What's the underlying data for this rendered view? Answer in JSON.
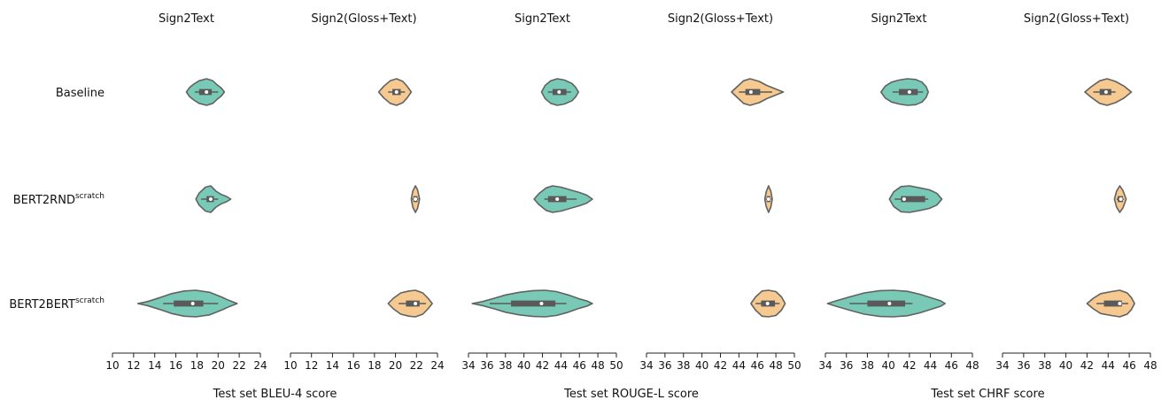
{
  "chart_data": {
    "type": "violin",
    "grid": false,
    "colors": {
      "Sign2Text": "#78c9b6",
      "Sign2(Gloss+Text)": "#f5c98f",
      "outline": "#626262",
      "box": "#5a5a5a",
      "median": "#ffffff"
    },
    "rows": [
      {
        "name": "Baseline",
        "sup": ""
      },
      {
        "name": "BERT2RND",
        "sup": "scratch"
      },
      {
        "name": "BERT2BERT",
        "sup": "scratch"
      }
    ],
    "metrics": [
      {
        "xlabel": "Test set BLEU-4 score",
        "ticks": [
          10,
          12,
          14,
          16,
          18,
          20,
          22,
          24
        ],
        "xlim": [
          10,
          24
        ]
      },
      {
        "xlabel": "Test set ROUGE-L score",
        "ticks": [
          34,
          36,
          38,
          40,
          42,
          44,
          46,
          48,
          50
        ],
        "xlim": [
          34,
          50
        ]
      },
      {
        "xlabel": "Test set CHRF score",
        "ticks": [
          34,
          36,
          38,
          40,
          42,
          44,
          46,
          48
        ],
        "xlim": [
          34,
          48
        ]
      }
    ],
    "panels": [
      {
        "title": "Sign2Text",
        "metric": 0,
        "violins": [
          {
            "median": 18.9,
            "q1": 18.2,
            "q3": 19.4,
            "wlo": 17.8,
            "whi": 20.0,
            "min": 17.0,
            "max": 20.6,
            "kde": [
              [
                17.0,
                0.0
              ],
              [
                17.3,
                0.35
              ],
              [
                17.7,
                0.6
              ],
              [
                18.2,
                0.85
              ],
              [
                18.9,
                1.0
              ],
              [
                19.5,
                0.85
              ],
              [
                19.9,
                0.55
              ],
              [
                20.3,
                0.3
              ],
              [
                20.6,
                0.0
              ]
            ]
          },
          {
            "median": 19.3,
            "q1": 18.9,
            "q3": 19.6,
            "wlo": 18.4,
            "whi": 20.0,
            "min": 17.9,
            "max": 21.2,
            "kde": [
              [
                17.9,
                0.0
              ],
              [
                18.2,
                0.45
              ],
              [
                18.8,
                0.9
              ],
              [
                19.3,
                1.0
              ],
              [
                19.8,
                0.6
              ],
              [
                20.3,
                0.35
              ],
              [
                20.8,
                0.2
              ],
              [
                21.2,
                0.0
              ]
            ]
          },
          {
            "median": 17.6,
            "q1": 15.8,
            "q3": 18.6,
            "wlo": 14.8,
            "whi": 20.0,
            "min": 12.4,
            "max": 21.8,
            "kde": [
              [
                12.4,
                0.0
              ],
              [
                13.3,
                0.15
              ],
              [
                14.5,
                0.45
              ],
              [
                15.6,
                0.75
              ],
              [
                16.8,
                0.95
              ],
              [
                17.9,
                1.0
              ],
              [
                19.2,
                0.85
              ],
              [
                20.3,
                0.5
              ],
              [
                21.0,
                0.25
              ],
              [
                21.8,
                0.0
              ]
            ]
          }
        ]
      },
      {
        "title": "Sign2(Gloss+Text)",
        "metric": 0,
        "violins": [
          {
            "median": 20.1,
            "q1": 19.7,
            "q3": 20.5,
            "wlo": 19.3,
            "whi": 20.9,
            "min": 18.4,
            "max": 21.5,
            "kde": [
              [
                18.4,
                0.0
              ],
              [
                18.9,
                0.45
              ],
              [
                19.5,
                0.85
              ],
              [
                20.1,
                1.0
              ],
              [
                20.7,
                0.8
              ],
              [
                21.1,
                0.45
              ],
              [
                21.5,
                0.0
              ]
            ]
          },
          {
            "median": 21.9,
            "q1": 21.7,
            "q3": 22.1,
            "wlo": 21.6,
            "whi": 22.2,
            "min": 21.5,
            "max": 22.3,
            "kde": [
              [
                21.5,
                0.0
              ],
              [
                21.65,
                0.6
              ],
              [
                21.9,
                1.0
              ],
              [
                22.1,
                0.7
              ],
              [
                22.3,
                0.0
              ]
            ]
          },
          {
            "median": 21.9,
            "q1": 21.0,
            "q3": 22.3,
            "wlo": 20.3,
            "whi": 22.9,
            "min": 19.3,
            "max": 23.5,
            "kde": [
              [
                19.3,
                0.0
              ],
              [
                19.8,
                0.4
              ],
              [
                20.5,
                0.8
              ],
              [
                21.3,
                0.95
              ],
              [
                21.9,
                1.0
              ],
              [
                22.6,
                0.8
              ],
              [
                23.1,
                0.4
              ],
              [
                23.5,
                0.0
              ]
            ]
          }
        ]
      },
      {
        "title": "Sign2Text",
        "metric": 1,
        "violins": [
          {
            "median": 43.8,
            "q1": 43.1,
            "q3": 44.6,
            "wlo": 42.6,
            "whi": 45.1,
            "min": 41.9,
            "max": 45.9,
            "kde": [
              [
                41.9,
                0.0
              ],
              [
                42.3,
                0.5
              ],
              [
                42.9,
                0.85
              ],
              [
                43.6,
                1.0
              ],
              [
                44.4,
                0.9
              ],
              [
                45.2,
                0.65
              ],
              [
                45.6,
                0.35
              ],
              [
                45.9,
                0.0
              ]
            ]
          },
          {
            "median": 43.6,
            "q1": 42.6,
            "q3": 44.6,
            "wlo": 42.2,
            "whi": 45.7,
            "min": 41.1,
            "max": 47.4,
            "kde": [
              [
                41.1,
                0.0
              ],
              [
                41.6,
                0.4
              ],
              [
                42.4,
                0.85
              ],
              [
                43.1,
                1.0
              ],
              [
                44.0,
                0.9
              ],
              [
                45.0,
                0.7
              ],
              [
                46.0,
                0.5
              ],
              [
                46.8,
                0.3
              ],
              [
                47.4,
                0.0
              ]
            ]
          },
          {
            "median": 41.9,
            "q1": 38.6,
            "q3": 43.4,
            "wlo": 36.3,
            "whi": 44.6,
            "min": 34.4,
            "max": 47.4,
            "kde": [
              [
                34.4,
                0.0
              ],
              [
                35.5,
                0.15
              ],
              [
                36.8,
                0.4
              ],
              [
                38.0,
                0.65
              ],
              [
                39.5,
                0.85
              ],
              [
                41.0,
                0.97
              ],
              [
                42.3,
                1.0
              ],
              [
                43.5,
                0.9
              ],
              [
                44.8,
                0.65
              ],
              [
                46.0,
                0.35
              ],
              [
                46.8,
                0.2
              ],
              [
                47.4,
                0.0
              ]
            ]
          }
        ]
      },
      {
        "title": "Sign2(Gloss+Text)",
        "metric": 1,
        "violins": [
          {
            "median": 45.3,
            "q1": 44.7,
            "q3": 46.3,
            "wlo": 44.0,
            "whi": 47.6,
            "min": 43.2,
            "max": 48.8,
            "kde": [
              [
                43.2,
                0.0
              ],
              [
                43.8,
                0.4
              ],
              [
                44.5,
                0.85
              ],
              [
                45.2,
                1.0
              ],
              [
                46.2,
                0.8
              ],
              [
                47.0,
                0.5
              ],
              [
                47.9,
                0.25
              ],
              [
                48.8,
                0.0
              ]
            ]
          },
          {
            "median": 47.2,
            "q1": 47.0,
            "q3": 47.4,
            "wlo": 46.9,
            "whi": 47.5,
            "min": 46.8,
            "max": 47.6,
            "kde": [
              [
                46.8,
                0.0
              ],
              [
                46.95,
                0.55
              ],
              [
                47.2,
                1.0
              ],
              [
                47.45,
                0.6
              ],
              [
                47.6,
                0.0
              ]
            ]
          },
          {
            "median": 47.1,
            "q1": 46.4,
            "q3": 47.9,
            "wlo": 45.8,
            "whi": 48.4,
            "min": 45.3,
            "max": 49.0,
            "kde": [
              [
                45.3,
                0.0
              ],
              [
                45.8,
                0.5
              ],
              [
                46.5,
                0.95
              ],
              [
                47.2,
                1.0
              ],
              [
                48.0,
                0.9
              ],
              [
                48.6,
                0.5
              ],
              [
                49.0,
                0.0
              ]
            ]
          }
        ]
      },
      {
        "title": "Sign2Text",
        "metric": 2,
        "violins": [
          {
            "median": 42.0,
            "q1": 41.0,
            "q3": 42.8,
            "wlo": 40.4,
            "whi": 43.3,
            "min": 39.3,
            "max": 43.8,
            "kde": [
              [
                39.3,
                0.0
              ],
              [
                39.7,
                0.45
              ],
              [
                40.3,
                0.75
              ],
              [
                41.0,
                0.9
              ],
              [
                41.8,
                1.0
              ],
              [
                42.6,
                0.95
              ],
              [
                43.2,
                0.75
              ],
              [
                43.6,
                0.4
              ],
              [
                43.8,
                0.0
              ]
            ]
          },
          {
            "median": 41.5,
            "q1": 41.2,
            "q3": 43.5,
            "wlo": 40.6,
            "whi": 43.8,
            "min": 40.1,
            "max": 45.1,
            "kde": [
              [
                40.1,
                0.0
              ],
              [
                40.5,
                0.55
              ],
              [
                41.2,
                0.95
              ],
              [
                42.0,
                1.0
              ],
              [
                43.0,
                0.85
              ],
              [
                43.9,
                0.7
              ],
              [
                44.6,
                0.45
              ],
              [
                45.1,
                0.0
              ]
            ]
          },
          {
            "median": 40.1,
            "q1": 38.0,
            "q3": 41.6,
            "wlo": 36.3,
            "whi": 42.3,
            "min": 34.2,
            "max": 45.4,
            "kde": [
              [
                34.2,
                0.0
              ],
              [
                35.0,
                0.2
              ],
              [
                36.3,
                0.5
              ],
              [
                37.7,
                0.8
              ],
              [
                39.2,
                0.97
              ],
              [
                40.5,
                1.0
              ],
              [
                41.8,
                0.92
              ],
              [
                43.0,
                0.7
              ],
              [
                44.2,
                0.4
              ],
              [
                45.0,
                0.2
              ],
              [
                45.4,
                0.0
              ]
            ]
          }
        ]
      },
      {
        "title": "Sign2(Gloss+Text)",
        "metric": 2,
        "violins": [
          {
            "median": 43.8,
            "q1": 43.2,
            "q3": 44.3,
            "wlo": 42.6,
            "whi": 44.7,
            "min": 41.8,
            "max": 46.2,
            "kde": [
              [
                41.8,
                0.0
              ],
              [
                42.4,
                0.4
              ],
              [
                43.2,
                0.85
              ],
              [
                43.9,
                1.0
              ],
              [
                44.7,
                0.8
              ],
              [
                45.5,
                0.45
              ],
              [
                46.2,
                0.0
              ]
            ]
          },
          {
            "median": 45.2,
            "q1": 44.9,
            "q3": 45.4,
            "wlo": 44.8,
            "whi": 45.5,
            "min": 44.6,
            "max": 45.7,
            "kde": [
              [
                44.6,
                0.0
              ],
              [
                44.8,
                0.6
              ],
              [
                45.1,
                1.0
              ],
              [
                45.4,
                0.65
              ],
              [
                45.7,
                0.0
              ]
            ]
          },
          {
            "median": 45.1,
            "q1": 43.6,
            "q3": 45.3,
            "wlo": 42.9,
            "whi": 45.9,
            "min": 42.0,
            "max": 46.5,
            "kde": [
              [
                42.0,
                0.0
              ],
              [
                42.6,
                0.4
              ],
              [
                43.3,
                0.75
              ],
              [
                44.3,
                0.9
              ],
              [
                45.1,
                1.0
              ],
              [
                45.8,
                0.8
              ],
              [
                46.2,
                0.45
              ],
              [
                46.5,
                0.0
              ]
            ]
          }
        ]
      }
    ]
  }
}
